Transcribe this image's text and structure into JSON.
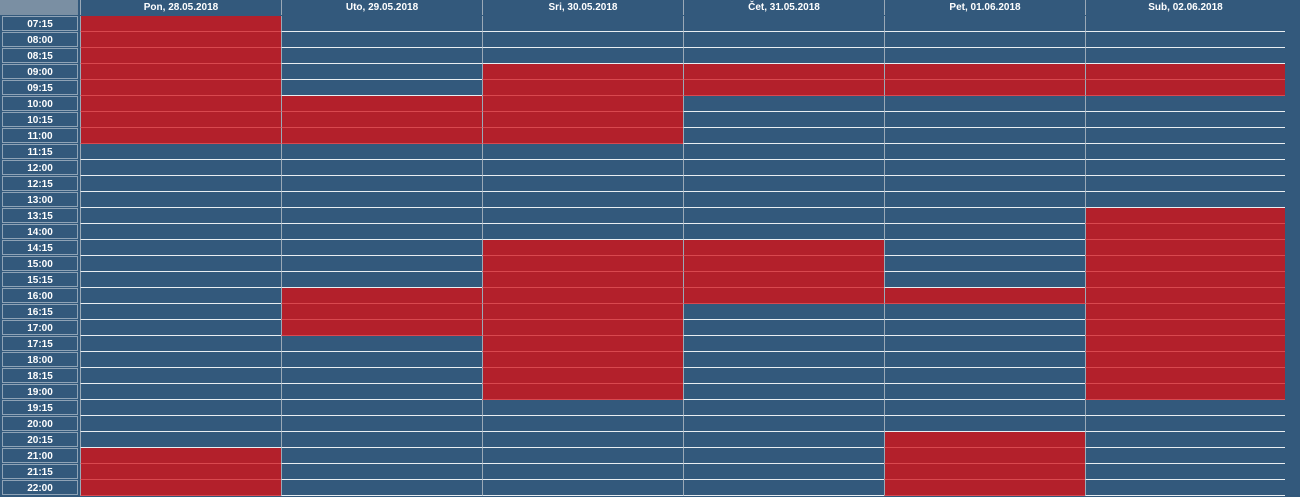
{
  "calendar": {
    "days": [
      {
        "label": "Pon, 28.05.2018",
        "busy": [
          [
            0,
            8
          ],
          [
            27,
            36
          ]
        ]
      },
      {
        "label": "Uto, 29.05.2018",
        "busy": [
          [
            5,
            8
          ],
          [
            17,
            20
          ]
        ]
      },
      {
        "label": "Sri, 30.05.2018",
        "busy": [
          [
            3,
            8
          ],
          [
            14,
            24
          ]
        ]
      },
      {
        "label": "Čet, 31.05.2018",
        "busy": [
          [
            3,
            5
          ],
          [
            14,
            18
          ]
        ]
      },
      {
        "label": "Pet, 01.06.2018",
        "busy": [
          [
            3,
            5
          ],
          [
            17,
            18
          ],
          [
            26,
            36
          ]
        ]
      },
      {
        "label": "Sub, 02.06.2018",
        "busy": [
          [
            3,
            5
          ],
          [
            12,
            24
          ]
        ]
      }
    ],
    "times": [
      "07:15",
      "08:00",
      "08:15",
      "09:00",
      "09:15",
      "10:00",
      "10:15",
      "11:00",
      "11:15",
      "12:00",
      "12:15",
      "13:00",
      "13:15",
      "14:00",
      "14:15",
      "15:00",
      "15:15",
      "16:00",
      "16:15",
      "17:00",
      "17:15",
      "18:00",
      "18:15",
      "19:00",
      "19:15",
      "20:00",
      "20:15",
      "21:00",
      "21:15",
      "22:00"
    ],
    "colors": {
      "free": "#33597c",
      "busy": "#b3202b",
      "header": "#33597c"
    }
  }
}
